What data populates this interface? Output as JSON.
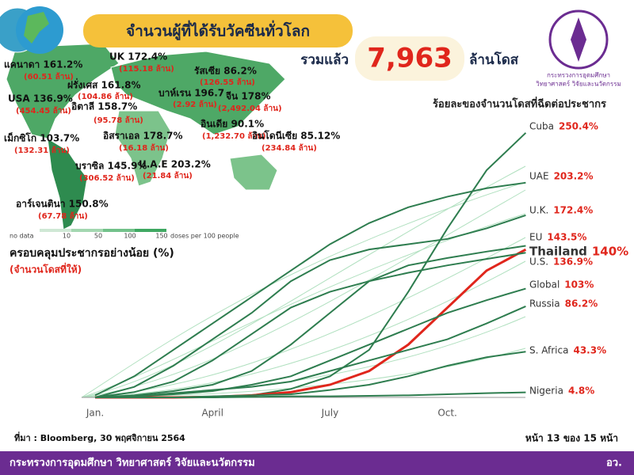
{
  "header": {
    "title": "จำนวนผู้ที่ได้รับวัคซีนทั่วโลก",
    "total_prefix": "รวมแล้ว",
    "total": "7,963",
    "total_suffix": "ล้านโดส"
  },
  "logo": {
    "line1": "กระทรวงการอุดมศึกษา",
    "line2": "วิทยาศาสตร์ วิจัยและนวัตกรรม"
  },
  "map": {
    "labels": [
      {
        "name": "แคนาดา 161.2%",
        "sub": "(60.51 ล้าน)"
      },
      {
        "name": "UK 172.4%",
        "sub": "(115.18 ล้าน)"
      },
      {
        "name": "ฝรั่งเศส 161.8%",
        "sub": "(104.86 ล้าน)"
      },
      {
        "name": "รัสเซีย 86.2%",
        "sub": "(126.55 ล้าน)"
      },
      {
        "name": "USA 136.9%",
        "sub": "(454.45 ล้าน)"
      },
      {
        "name": "อิตาลี 158.7%",
        "sub": "(95.78 ล้าน)"
      },
      {
        "name": "บาห์เรน 196.7",
        "sub": "(2.92 ล้าน)"
      },
      {
        "name": "จีน 178%",
        "sub": "(2,492.04 ล้าน)"
      },
      {
        "name": "เม็กซิโก 103.7%",
        "sub": "(132.31 ล้าน)"
      },
      {
        "name": "อิสราเอล 178.7%",
        "sub": "(16.18 ล้าน)"
      },
      {
        "name": "อินเดีย 90.1%",
        "sub": "(1,232.70 ล้าน)"
      },
      {
        "name": "อินโดนีเซีย 85.12%",
        "sub": "(234.84 ล้าน)"
      },
      {
        "name": "U.A.E 203.2%",
        "sub": "(21.84 ล้าน)"
      },
      {
        "name": "บราซิล 145.9%",
        "sub": "(306.52 ล้าน)"
      },
      {
        "name": "อาร์เจนตินา 150.8%",
        "sub": "(67.78 ล้าน)"
      }
    ],
    "legend": [
      "no data",
      "10",
      "50",
      "100",
      "150",
      "doses per 100 people"
    ]
  },
  "chart_data": {
    "type": "line",
    "title": "ร้อยละของจำนวนโดสที่ฉีดต่อประชากร",
    "ylabel": "ครอบคลุมประชากรอย่างน้อย (%)",
    "ysublabel": "(จำนวนโดสที่ให้)",
    "categories": [
      "Jan.",
      null,
      null,
      "April",
      null,
      null,
      "July",
      null,
      null,
      "Oct.",
      null,
      null
    ],
    "ylim": [
      0,
      260
    ],
    "series": [
      {
        "name": "Cuba",
        "color": "#2e7d4f",
        "values": [
          0,
          0,
          0,
          0,
          2,
          8,
          20,
          45,
          100,
          160,
          215,
          250.4
        ],
        "value_labels": [
          null,
          null,
          null,
          null,
          null,
          null,
          null,
          null,
          null,
          null,
          null,
          "250.4%"
        ]
      },
      {
        "name": "UAE",
        "color": "#2e7d4f",
        "values": [
          2,
          20,
          45,
          70,
          95,
          120,
          145,
          165,
          180,
          190,
          198,
          203.2
        ],
        "value_labels": [
          null,
          null,
          null,
          null,
          null,
          null,
          null,
          null,
          null,
          null,
          null,
          "203.2%"
        ]
      },
      {
        "name": "U.K.",
        "color": "#2e7d4f",
        "values": [
          0,
          10,
          30,
          55,
          80,
          110,
          130,
          140,
          145,
          150,
          160,
          172.4
        ],
        "value_labels": [
          null,
          null,
          null,
          null,
          null,
          null,
          null,
          null,
          null,
          null,
          null,
          "172.4%"
        ]
      },
      {
        "name": "EU",
        "color": "#2e7d4f",
        "values": [
          0,
          2,
          6,
          12,
          25,
          50,
          80,
          110,
          125,
          132,
          138,
          143.5
        ],
        "value_labels": [
          null,
          null,
          null,
          null,
          null,
          null,
          null,
          null,
          null,
          null,
          null,
          "143.5%"
        ]
      },
      {
        "name": "Thailand",
        "color": "#e0261c",
        "values": [
          0,
          0,
          0,
          0.5,
          2,
          5,
          12,
          25,
          50,
          85,
          120,
          140
        ],
        "value_labels": [
          null,
          null,
          null,
          null,
          null,
          null,
          null,
          null,
          null,
          null,
          null,
          "140%"
        ]
      },
      {
        "name": "U.S.",
        "color": "#2e7d4f",
        "values": [
          0,
          5,
          15,
          35,
          60,
          85,
          100,
          110,
          118,
          125,
          131,
          136.9
        ],
        "value_labels": [
          null,
          null,
          null,
          null,
          null,
          null,
          null,
          null,
          null,
          null,
          null,
          "136.9%"
        ]
      },
      {
        "name": "Global",
        "color": "#2e7d4f",
        "values": [
          0,
          1,
          3,
          6,
          12,
          20,
          35,
          50,
          65,
          80,
          92,
          103
        ],
        "value_labels": [
          null,
          null,
          null,
          null,
          null,
          null,
          null,
          null,
          null,
          null,
          null,
          "103%"
        ]
      },
      {
        "name": "Russia",
        "color": "#2e7d4f",
        "values": [
          0,
          1,
          4,
          7,
          10,
          15,
          25,
          35,
          45,
          55,
          70,
          86.2
        ],
        "value_labels": [
          null,
          null,
          null,
          null,
          null,
          null,
          null,
          null,
          null,
          null,
          null,
          "86.2%"
        ]
      },
      {
        "name": "S. Africa",
        "color": "#2e7d4f",
        "values": [
          0,
          0,
          0,
          1,
          2,
          3,
          7,
          12,
          20,
          30,
          38,
          43.3
        ],
        "value_labels": [
          null,
          null,
          null,
          null,
          null,
          null,
          null,
          null,
          null,
          null,
          null,
          "43.3%"
        ]
      },
      {
        "name": "Nigeria",
        "color": "#2e7d4f",
        "values": [
          0,
          0,
          0,
          0,
          0.5,
          1,
          1,
          1.5,
          2,
          3,
          4,
          4.8
        ],
        "value_labels": [
          null,
          null,
          null,
          null,
          null,
          null,
          null,
          null,
          null,
          null,
          null,
          "4.8%"
        ]
      }
    ]
  },
  "footer": {
    "source": "ที่มา : Bloomberg, 30 พฤศจิกายน 2564",
    "page": "หน้า 13 ของ 15 หน้า",
    "ministry": "กระทรวงการอุดมศึกษา วิทยาศาสตร์ วิจัยและนวัตกรรม",
    "abbr": "อว."
  }
}
